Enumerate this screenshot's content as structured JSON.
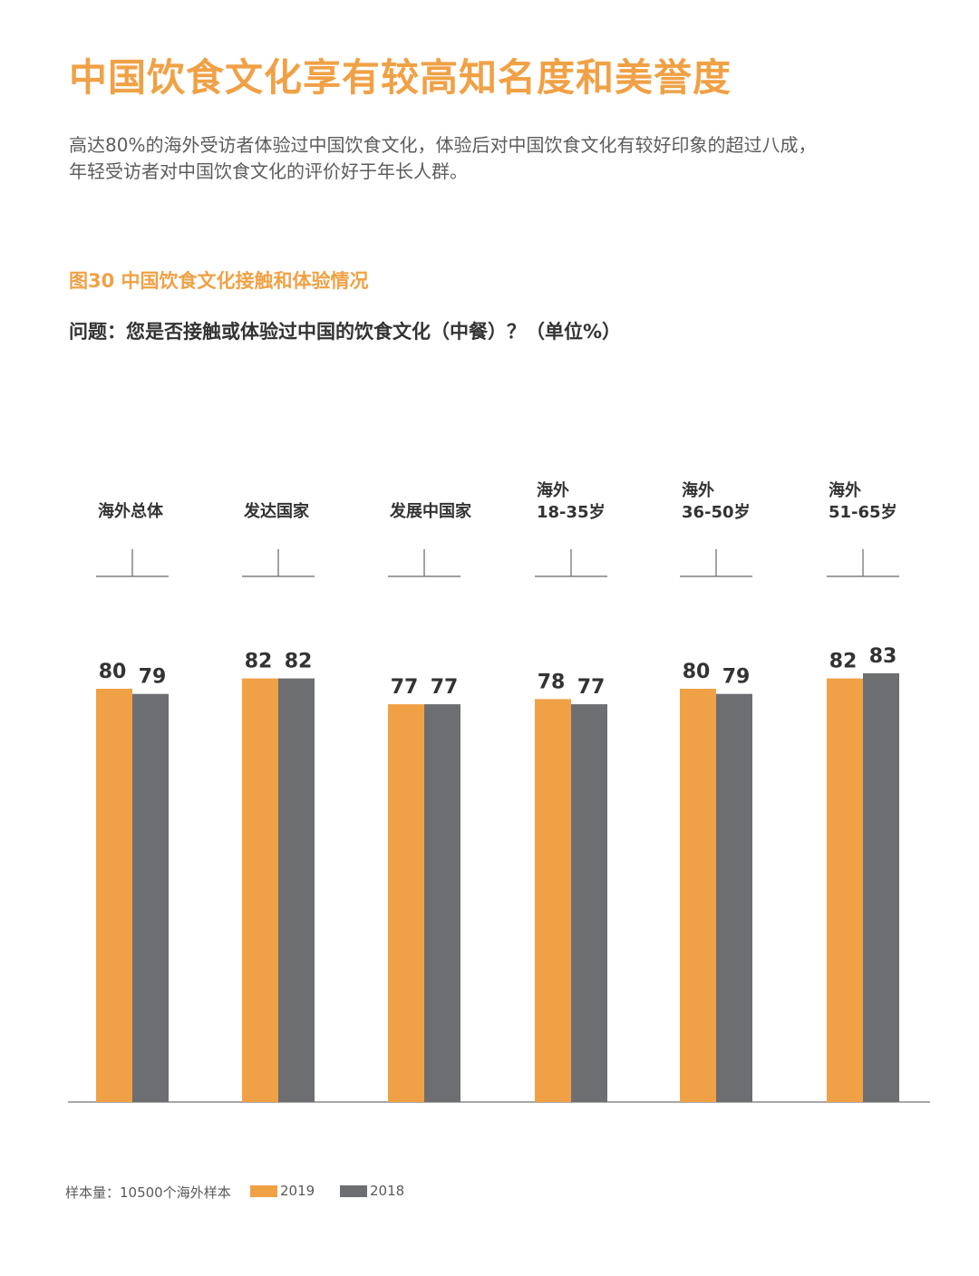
{
  "page": {
    "headline": "中国饮食文化享有较高知名度和美誉度",
    "intro_line1": "高达80%的海外受访者体验过中国饮食文化，体验后对中国饮食文化有较好印象的超过八成，",
    "intro_line2": "年轻受访者对中国饮食文化的评价好于年长人群。",
    "figure_title": "图30  中国饮食文化接触和体验情况",
    "question": "问题：您是否接触或体验过中国的饮食文化（中餐）？（单位%）",
    "footnote": "样本量：10500个海外样本"
  },
  "chart_data": {
    "type": "bar",
    "title": "图30  中国饮食文化接触和体验情况",
    "subtitle": "问题：您是否接触或体验过中国的饮食文化（中餐）？（单位%）",
    "categories": [
      [
        "海外总体"
      ],
      [
        "发达国家"
      ],
      [
        "发展中国家"
      ],
      [
        "海外",
        "18-35岁"
      ],
      [
        "海外",
        "36-50岁"
      ],
      [
        "海外",
        "51-65岁"
      ]
    ],
    "series": [
      {
        "name": "2019",
        "color": "#f0a145",
        "values": [
          80,
          82,
          77,
          78,
          80,
          82
        ]
      },
      {
        "name": "2018",
        "color": "#6d6e71",
        "values": [
          79,
          82,
          77,
          77,
          79,
          83
        ]
      }
    ],
    "ylim": [
      0,
      83
    ],
    "grid": false,
    "legend": "bottom-left",
    "data_labels": true
  }
}
